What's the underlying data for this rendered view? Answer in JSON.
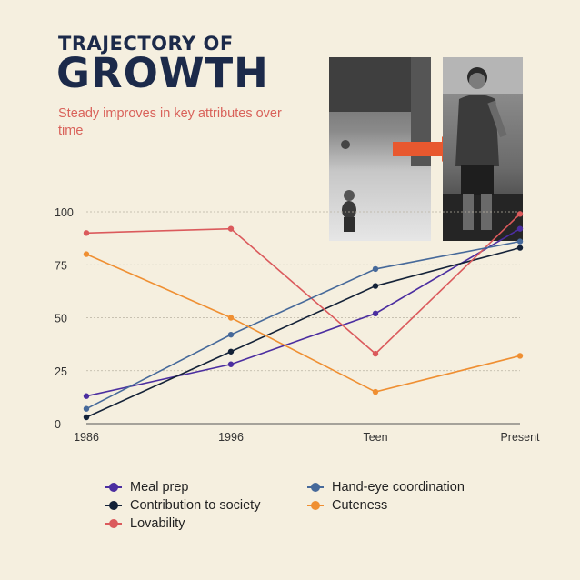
{
  "header": {
    "title_line1": "TRAJECTORY OF",
    "title_line2": "GROWTH",
    "subtitle": "Steady improves in key attributes over time"
  },
  "photos": {
    "arrow_color": "#e8582f"
  },
  "chart_data": {
    "type": "line",
    "title": "TRAJECTORY OF GROWTH",
    "subtitle": "Steady improves in key attributes over time",
    "categories": [
      "1986",
      "1996",
      "Teen",
      "Present"
    ],
    "ylim": [
      0,
      100
    ],
    "yticks": [
      0,
      25,
      50,
      75,
      100
    ],
    "grid": true,
    "legend_position": "bottom",
    "series": [
      {
        "name": "Meal prep",
        "color": "#4b2ea0",
        "values": [
          13,
          28,
          52,
          92
        ]
      },
      {
        "name": "Contribution to society",
        "color": "#142238",
        "values": [
          3,
          34,
          65,
          83
        ]
      },
      {
        "name": "Lovability",
        "color": "#db5a5c",
        "values": [
          90,
          92,
          33,
          99
        ]
      },
      {
        "name": "Hand-eye coordination",
        "color": "#46699a",
        "values": [
          7,
          42,
          73,
          86
        ]
      },
      {
        "name": "Cuteness",
        "color": "#ef8f32",
        "values": [
          80,
          50,
          15,
          32
        ]
      }
    ]
  }
}
